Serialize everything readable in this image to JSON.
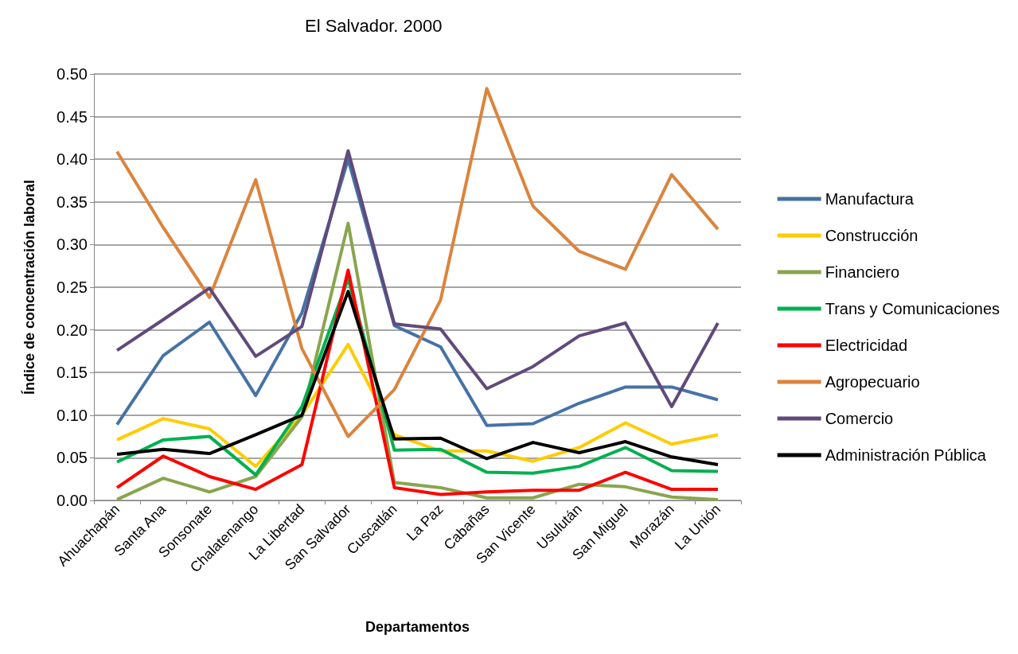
{
  "chart_data": {
    "type": "line",
    "title": "El Salvador. 2000",
    "xlabel": "Departamentos",
    "ylabel": "Índice de concentración laboral",
    "categories": [
      "Ahuachapán",
      "Santa Ana",
      "Sonsonate",
      "Chalatenango",
      "La Libertad",
      "San Salvador",
      "Cuscatlán",
      "La Paz",
      "Cabañas",
      "San Vicente",
      "Usulután",
      "San Miguel",
      "Morazán",
      "La Unión"
    ],
    "series": [
      {
        "name": "Manufactura",
        "color": "#4572a7",
        "values": [
          0.089,
          0.17,
          0.209,
          0.123,
          0.22,
          0.4,
          0.205,
          0.18,
          0.088,
          0.09,
          0.114,
          0.133,
          0.133,
          0.118
        ]
      },
      {
        "name": "Construcción",
        "color": "#ffcc00",
        "values": [
          0.071,
          0.096,
          0.084,
          0.04,
          0.1,
          0.183,
          0.077,
          0.058,
          0.058,
          0.046,
          0.062,
          0.091,
          0.066,
          0.077
        ]
      },
      {
        "name": "Financiero",
        "color": "#89a54e",
        "values": [
          0.001,
          0.026,
          0.01,
          0.028,
          0.098,
          0.325,
          0.021,
          0.015,
          0.003,
          0.003,
          0.019,
          0.016,
          0.004,
          0.001
        ]
      },
      {
        "name": "Trans y Comunicaciones",
        "color": "#00b050",
        "values": [
          0.045,
          0.071,
          0.075,
          0.03,
          0.11,
          0.26,
          0.059,
          0.06,
          0.033,
          0.032,
          0.04,
          0.062,
          0.035,
          0.034
        ]
      },
      {
        "name": "Electricidad",
        "color": "#ff0000",
        "values": [
          0.015,
          0.052,
          0.028,
          0.013,
          0.042,
          0.27,
          0.015,
          0.007,
          0.01,
          0.012,
          0.012,
          0.033,
          0.013,
          0.013
        ]
      },
      {
        "name": "Agropecuario",
        "color": "#db843d",
        "values": [
          0.409,
          0.32,
          0.238,
          0.376,
          0.178,
          0.075,
          0.13,
          0.235,
          0.483,
          0.345,
          0.292,
          0.271,
          0.382,
          0.318
        ]
      },
      {
        "name": "Comercio",
        "color": "#604a7b",
        "values": [
          0.176,
          0.212,
          0.249,
          0.169,
          0.204,
          0.41,
          0.207,
          0.201,
          0.131,
          0.157,
          0.193,
          0.208,
          0.11,
          0.208
        ]
      },
      {
        "name": "Administración Pública",
        "color": "#000000",
        "values": [
          0.054,
          0.06,
          0.055,
          0.077,
          0.1,
          0.245,
          0.072,
          0.073,
          0.049,
          0.068,
          0.056,
          0.069,
          0.051,
          0.042
        ]
      }
    ],
    "ylim": [
      0,
      0.5
    ],
    "yticks": [
      {
        "value": 0,
        "label": "0.00"
      },
      0.05,
      {
        "value": 0.1,
        "label": "0.10"
      },
      0.15,
      {
        "value": 0.2,
        "label": "0.20"
      },
      0.25,
      {
        "value": 0.3,
        "label": "0.30"
      },
      0.35,
      {
        "value": 0.4,
        "label": "0.40"
      },
      0.45,
      {
        "value": 0.5,
        "label": "0.50"
      }
    ],
    "grid": "y",
    "legend": "right",
    "marker": "none",
    "line_style": "solid"
  }
}
